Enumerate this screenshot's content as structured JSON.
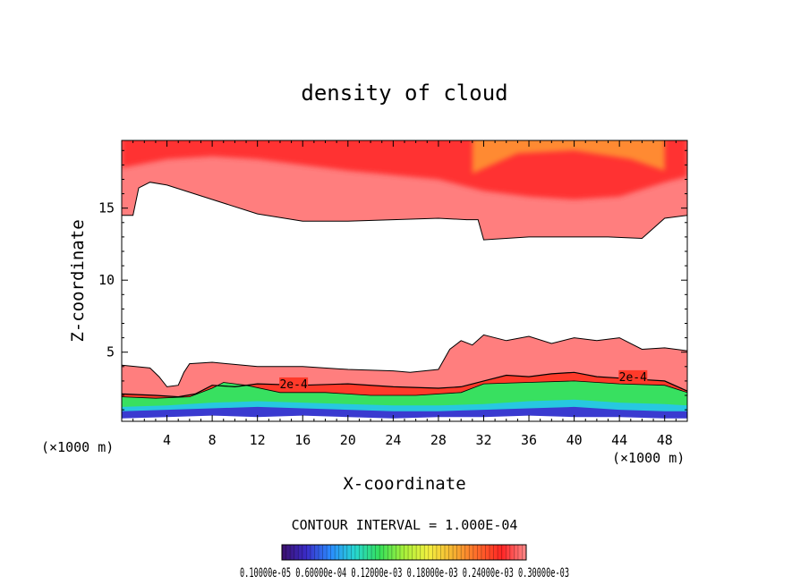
{
  "chart_data": {
    "type": "heatmap",
    "title": "density of cloud",
    "xlabel": "X-coordinate",
    "ylabel": "Z-coordinate",
    "x_unit_left": "(×1000 m)",
    "x_unit_right": "(×1000 m)",
    "xlim": [
      0,
      50
    ],
    "ylim": [
      0.2,
      19.7
    ],
    "x_ticks": [
      4,
      8,
      12,
      16,
      20,
      24,
      28,
      32,
      36,
      40,
      44,
      48
    ],
    "y_ticks": [
      5,
      10,
      15
    ],
    "contour_interval_text": "CONTOUR INTERVAL = 1.000E-04",
    "contour_label": "2e-4",
    "colorbar_label_text": "0.10000e-05 0.60000e-04 0.12000e-03 0.18000e-03 0.24000e-03 0.30000e-03",
    "colorbar_labels": [
      "0.10000e-05",
      "0.60000e-04",
      "0.12000e-03",
      "0.18000e-03",
      "0.24000e-03",
      "0.30000e-03"
    ],
    "value_range": [
      1e-06,
      0.0003
    ],
    "colormap": [
      "#3b0f6b",
      "#3a2cc8",
      "#2a8cff",
      "#27d8d0",
      "#35e05a",
      "#a8f03a",
      "#f4f040",
      "#f6b331",
      "#ff6a2a",
      "#ff2424",
      "#ff8a8a"
    ],
    "upper_cloud_bottom": [
      [
        0,
        14.5
      ],
      [
        1,
        14.5
      ],
      [
        1.5,
        16.4
      ],
      [
        2.5,
        16.8
      ],
      [
        4,
        16.6
      ],
      [
        8,
        15.6
      ],
      [
        12,
        14.6
      ],
      [
        16,
        14.1
      ],
      [
        20,
        14.1
      ],
      [
        24,
        14.2
      ],
      [
        28,
        14.3
      ],
      [
        30.5,
        14.2
      ],
      [
        31.5,
        14.2
      ],
      [
        32,
        12.8
      ],
      [
        36,
        13.0
      ],
      [
        40,
        13.0
      ],
      [
        43,
        13.0
      ],
      [
        46,
        12.9
      ],
      [
        48,
        14.3
      ],
      [
        50,
        14.5
      ]
    ],
    "upper_cloud_core": [
      [
        0,
        17.8
      ],
      [
        4,
        18.4
      ],
      [
        8,
        18.6
      ],
      [
        12,
        18.4
      ],
      [
        16,
        18.0
      ],
      [
        20,
        17.6
      ],
      [
        24,
        17.3
      ],
      [
        28,
        17.0
      ],
      [
        32,
        16.2
      ],
      [
        36,
        15.8
      ],
      [
        40,
        15.6
      ],
      [
        44,
        15.8
      ],
      [
        48,
        16.8
      ],
      [
        50,
        17.2
      ]
    ],
    "upper_cloud_yellow": [
      [
        31,
        17.4
      ],
      [
        35,
        18.8
      ],
      [
        40,
        19.0
      ],
      [
        45,
        18.4
      ],
      [
        48,
        17.6
      ]
    ],
    "lower_cloud_top": [
      [
        0,
        4.1
      ],
      [
        2.5,
        3.9
      ],
      [
        3.3,
        3.3
      ],
      [
        4,
        2.6
      ],
      [
        5,
        2.7
      ],
      [
        5.5,
        3.6
      ],
      [
        6,
        4.2
      ],
      [
        8,
        4.3
      ],
      [
        12,
        4.0
      ],
      [
        16,
        4.0
      ],
      [
        20,
        3.8
      ],
      [
        24,
        3.7
      ],
      [
        25.5,
        3.6
      ],
      [
        28,
        3.8
      ],
      [
        29,
        5.2
      ],
      [
        30,
        5.8
      ],
      [
        31,
        5.5
      ],
      [
        32,
        6.2
      ],
      [
        34,
        5.8
      ],
      [
        36,
        6.1
      ],
      [
        38,
        5.6
      ],
      [
        40,
        6.0
      ],
      [
        42,
        5.8
      ],
      [
        44,
        6.0
      ],
      [
        46,
        5.2
      ],
      [
        48,
        5.3
      ],
      [
        50,
        5.1
      ]
    ],
    "contour_2e4": [
      [
        0,
        2.1
      ],
      [
        3,
        2.0
      ],
      [
        5,
        1.9
      ],
      [
        6.5,
        2.1
      ],
      [
        8,
        2.7
      ],
      [
        10,
        2.6
      ],
      [
        12,
        2.8
      ],
      [
        16,
        2.7
      ],
      [
        20,
        2.8
      ],
      [
        24,
        2.6
      ],
      [
        28,
        2.5
      ],
      [
        30,
        2.6
      ],
      [
        32,
        3.0
      ],
      [
        34,
        3.4
      ],
      [
        36,
        3.3
      ],
      [
        38,
        3.5
      ],
      [
        40,
        3.6
      ],
      [
        42,
        3.3
      ],
      [
        44,
        3.2
      ],
      [
        46,
        3.1
      ],
      [
        48,
        3.0
      ],
      [
        50,
        2.3
      ]
    ],
    "lower_cloud_green_top": [
      [
        0,
        1.9
      ],
      [
        3,
        1.8
      ],
      [
        6,
        1.9
      ],
      [
        8,
        2.5
      ],
      [
        9,
        2.9
      ],
      [
        11,
        2.7
      ],
      [
        14,
        2.2
      ],
      [
        18,
        2.2
      ],
      [
        22,
        2.0
      ],
      [
        26,
        2.0
      ],
      [
        30,
        2.2
      ],
      [
        32,
        2.8
      ],
      [
        36,
        2.9
      ],
      [
        40,
        3.0
      ],
      [
        44,
        2.8
      ],
      [
        48,
        2.7
      ],
      [
        50,
        2.2
      ]
    ],
    "lower_cloud_cyan_top": [
      [
        0,
        1.2
      ],
      [
        4,
        1.3
      ],
      [
        8,
        1.5
      ],
      [
        12,
        1.6
      ],
      [
        16,
        1.5
      ],
      [
        20,
        1.4
      ],
      [
        24,
        1.3
      ],
      [
        28,
        1.3
      ],
      [
        32,
        1.4
      ],
      [
        36,
        1.6
      ],
      [
        40,
        1.7
      ],
      [
        44,
        1.5
      ],
      [
        48,
        1.4
      ],
      [
        50,
        1.3
      ]
    ],
    "lower_cloud_blue_top": [
      [
        0,
        0.9
      ],
      [
        4,
        1.0
      ],
      [
        8,
        1.1
      ],
      [
        12,
        1.2
      ],
      [
        16,
        1.1
      ],
      [
        20,
        1.0
      ],
      [
        24,
        0.9
      ],
      [
        28,
        0.9
      ],
      [
        32,
        1.0
      ],
      [
        36,
        1.1
      ],
      [
        40,
        1.2
      ],
      [
        44,
        1.0
      ],
      [
        48,
        0.9
      ],
      [
        50,
        0.9
      ]
    ],
    "lower_cloud_bottom": [
      [
        0,
        0.4
      ],
      [
        4,
        0.5
      ],
      [
        8,
        0.6
      ],
      [
        12,
        0.5
      ],
      [
        16,
        0.6
      ],
      [
        20,
        0.5
      ],
      [
        24,
        0.4
      ],
      [
        28,
        0.5
      ],
      [
        32,
        0.5
      ],
      [
        36,
        0.6
      ],
      [
        40,
        0.5
      ],
      [
        44,
        0.5
      ],
      [
        48,
        0.4
      ],
      [
        50,
        0.4
      ]
    ]
  }
}
